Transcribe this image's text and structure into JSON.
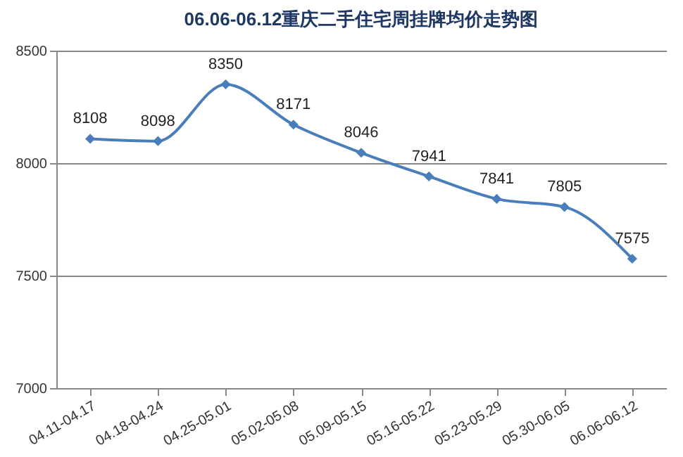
{
  "chart_data": {
    "type": "line",
    "title": "06.06-06.12重庆二手住宅周挂牌均价走势图",
    "categories": [
      "04.11-04.17",
      "04.18-04.24",
      "04.25-05.01",
      "05.02-05.08",
      "05.09-05.15",
      "05.16-05.22",
      "05.23-05.29",
      "05.30-06.05",
      "06.06-06.12"
    ],
    "series": [
      {
        "color": "#4a7ebb",
        "values": [
          8108,
          8098,
          8350,
          8171,
          8046,
          7941,
          7841,
          7805,
          7575
        ]
      }
    ],
    "ylim": [
      7000,
      8500
    ],
    "yticks": [
      7000,
      7500,
      8000,
      8500
    ],
    "grid": "y",
    "marker": "diamond",
    "line_style": "solid",
    "data_labels": true
  }
}
